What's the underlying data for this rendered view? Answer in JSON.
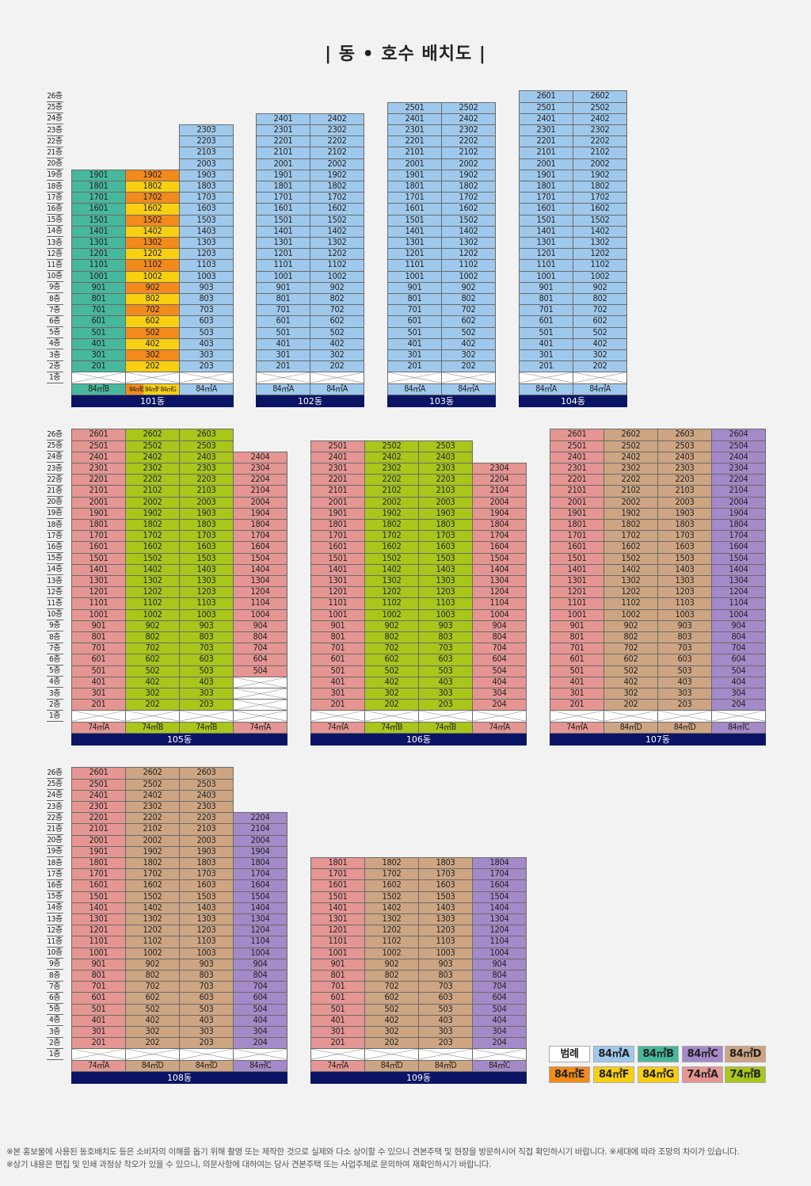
{
  "title": "| 동 • 호수 배치도 |",
  "floor_labels": [
    "26층",
    "25층",
    "24층",
    "23층",
    "22층",
    "21층",
    "20층",
    "19층",
    "18층",
    "17층",
    "16층",
    "15층",
    "14층",
    "13층",
    "12층",
    "11층",
    "10층",
    "9층",
    "8층",
    "7층",
    "6층",
    "5층",
    "4층",
    "3층",
    "2층",
    "1층"
  ],
  "type_colors": {
    "84A": "#9fc9ec",
    "84B": "#47b89b",
    "84C": "#a48ac8",
    "84D": "#cda583",
    "84E": "#f28a1c",
    "84F": "#f9cf11",
    "84G": "#f9cf11",
    "74A": "#e59693",
    "74B": "#a9c61b"
  },
  "buildings": [
    {
      "name": "101동",
      "columns": [
        {
          "type": "84B",
          "line": "01",
          "top": 19,
          "type_label": "84㎡B"
        },
        {
          "type": "84E",
          "line": "02",
          "top": 19,
          "type_label": "84㎡E 84㎡F 84㎡G",
          "alt": {
            "odd": "84E",
            "even": "84F"
          }
        },
        {
          "type": "84A",
          "line": "03",
          "top": 23,
          "type_label": "84㎡A"
        }
      ]
    },
    {
      "name": "102동",
      "columns": [
        {
          "type": "84A",
          "line": "01",
          "top": 24,
          "type_label": "84㎡A"
        },
        {
          "type": "84A",
          "line": "02",
          "top": 24,
          "type_label": "84㎡A"
        }
      ]
    },
    {
      "name": "103동",
      "columns": [
        {
          "type": "84A",
          "line": "01",
          "top": 25,
          "type_label": "84㎡A"
        },
        {
          "type": "84A",
          "line": "02",
          "top": 25,
          "type_label": "84㎡A"
        }
      ]
    },
    {
      "name": "104동",
      "columns": [
        {
          "type": "84A",
          "line": "01",
          "top": 26,
          "type_label": "84㎡A"
        },
        {
          "type": "84A",
          "line": "02",
          "top": 26,
          "type_label": "84㎡A"
        }
      ]
    },
    {
      "name": "105동",
      "columns": [
        {
          "type": "74A",
          "line": "01",
          "top": 26,
          "type_label": "74㎡A"
        },
        {
          "type": "74B",
          "line": "02",
          "top": 26,
          "type_label": "74㎡B"
        },
        {
          "type": "74B",
          "line": "03",
          "top": 26,
          "type_label": "74㎡B"
        },
        {
          "type": "74A",
          "line": "04",
          "top": 24,
          "bottom": 5,
          "type_label": "74㎡A"
        }
      ]
    },
    {
      "name": "106동",
      "columns": [
        {
          "type": "74A",
          "line": "01",
          "top": 25,
          "type_label": "74㎡A"
        },
        {
          "type": "74B",
          "line": "02",
          "top": 25,
          "type_label": "74㎡B"
        },
        {
          "type": "74B",
          "line": "03",
          "top": 25,
          "type_label": "74㎡B"
        },
        {
          "type": "74A",
          "line": "04",
          "top": 23,
          "type_label": "74㎡A"
        }
      ]
    },
    {
      "name": "107동",
      "columns": [
        {
          "type": "74A",
          "line": "01",
          "top": 26,
          "type_label": "74㎡A"
        },
        {
          "type": "84D",
          "line": "02",
          "top": 26,
          "type_label": "84㎡D"
        },
        {
          "type": "84D",
          "line": "03",
          "top": 26,
          "type_label": "84㎡D"
        },
        {
          "type": "84C",
          "line": "04",
          "top": 26,
          "type_label": "84㎡C"
        }
      ]
    },
    {
      "name": "108동",
      "columns": [
        {
          "type": "74A",
          "line": "01",
          "top": 26,
          "type_label": "74㎡A"
        },
        {
          "type": "84D",
          "line": "02",
          "top": 26,
          "type_label": "84㎡D"
        },
        {
          "type": "84D",
          "line": "03",
          "top": 26,
          "type_label": "84㎡D"
        },
        {
          "type": "84C",
          "line": "04",
          "top": 22,
          "type_label": "84㎡C"
        }
      ]
    },
    {
      "name": "109동",
      "columns": [
        {
          "type": "74A",
          "line": "01",
          "top": 18,
          "type_label": "74㎡A"
        },
        {
          "type": "84D",
          "line": "02",
          "top": 18,
          "type_label": "84㎡D"
        },
        {
          "type": "84D",
          "line": "03",
          "top": 18,
          "type_label": "84㎡D"
        },
        {
          "type": "84C",
          "line": "04",
          "top": 18,
          "type_label": "84㎡C"
        }
      ]
    }
  ],
  "legend": {
    "title": "범례",
    "items": [
      {
        "label": "84㎡A",
        "color": "#9fc9ec"
      },
      {
        "label": "84㎡B",
        "color": "#47b89b"
      },
      {
        "label": "84㎡C",
        "color": "#a48ac8"
      },
      {
        "label": "84㎡D",
        "color": "#cda583"
      },
      {
        "label": "84㎡E",
        "color": "#f28a1c"
      },
      {
        "label": "84㎡F",
        "color": "#f9cf11"
      },
      {
        "label": "84㎡G",
        "color": "#f9cf11"
      },
      {
        "label": "74㎡A",
        "color": "#e59693"
      },
      {
        "label": "74㎡B",
        "color": "#a9c61b"
      }
    ]
  },
  "notes": [
    "※본 홍보물에 사용된 동호배치도 등은 소비자의 이해를 돕기 위해 촬영 또는 제작한 것으로 실제와 다소 상이할 수 있으니 견본주택 및 현장을 방문하시어 직접 확인하시기 바랍니다. ※세대에 따라 조망의 차이가 있습니다.",
    "※상기 내용은 편집 및 인쇄 과정상 착오가 있을 수 있으니, 의문사항에 대하여는 당사 견본주택 또는 사업주체로 문의하여 재확인하시기 바랍니다."
  ]
}
